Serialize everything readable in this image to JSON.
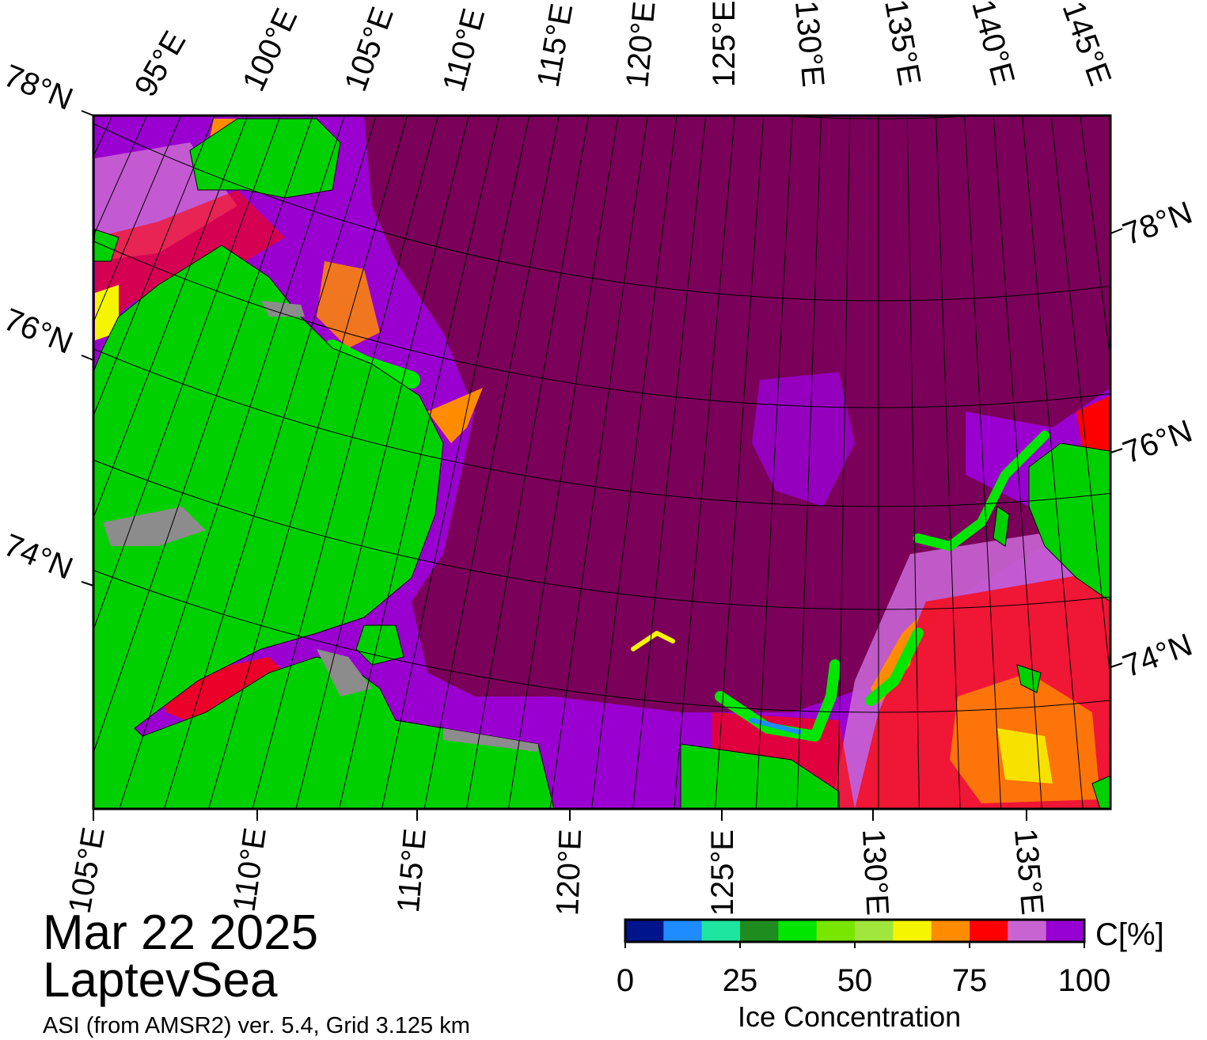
{
  "map": {
    "date": "Mar 22 2025",
    "region": "LaptevSea",
    "source": "ASI (from AMSR2) ver. 5.4,  Grid 3.125 km",
    "colors": {
      "open_ice": "#7a0059",
      "land": "#00d000",
      "coast_ice": "#9a00d0",
      "water_gray": "#8c8c8c"
    }
  },
  "graticule": {
    "top_lon_labels": [
      "95°E",
      "100°E",
      "105°E",
      "110°E",
      "115°E",
      "120°E",
      "125°E",
      "130°E",
      "135°E",
      "140°E",
      "145°E"
    ],
    "bottom_lon_labels": [
      "105°E",
      "110°E",
      "115°E",
      "120°E",
      "125°E",
      "130°E",
      "135°E"
    ],
    "left_lat_labels": [
      "78°N",
      "76°N",
      "74°N"
    ],
    "right_lat_labels": [
      "78°N",
      "76°N",
      "74°N"
    ]
  },
  "colorbar": {
    "unit": "C[%]",
    "title": "Ice Concentration",
    "ticks": [
      "0",
      "25",
      "50",
      "75",
      "100"
    ],
    "colors": [
      "#00148c",
      "#1e8cff",
      "#1ee6a0",
      "#1e8c1e",
      "#00e600",
      "#78e600",
      "#a0e63c",
      "#f5f500",
      "#ff8c00",
      "#ff0000",
      "#c864d2",
      "#9600d2"
    ]
  }
}
